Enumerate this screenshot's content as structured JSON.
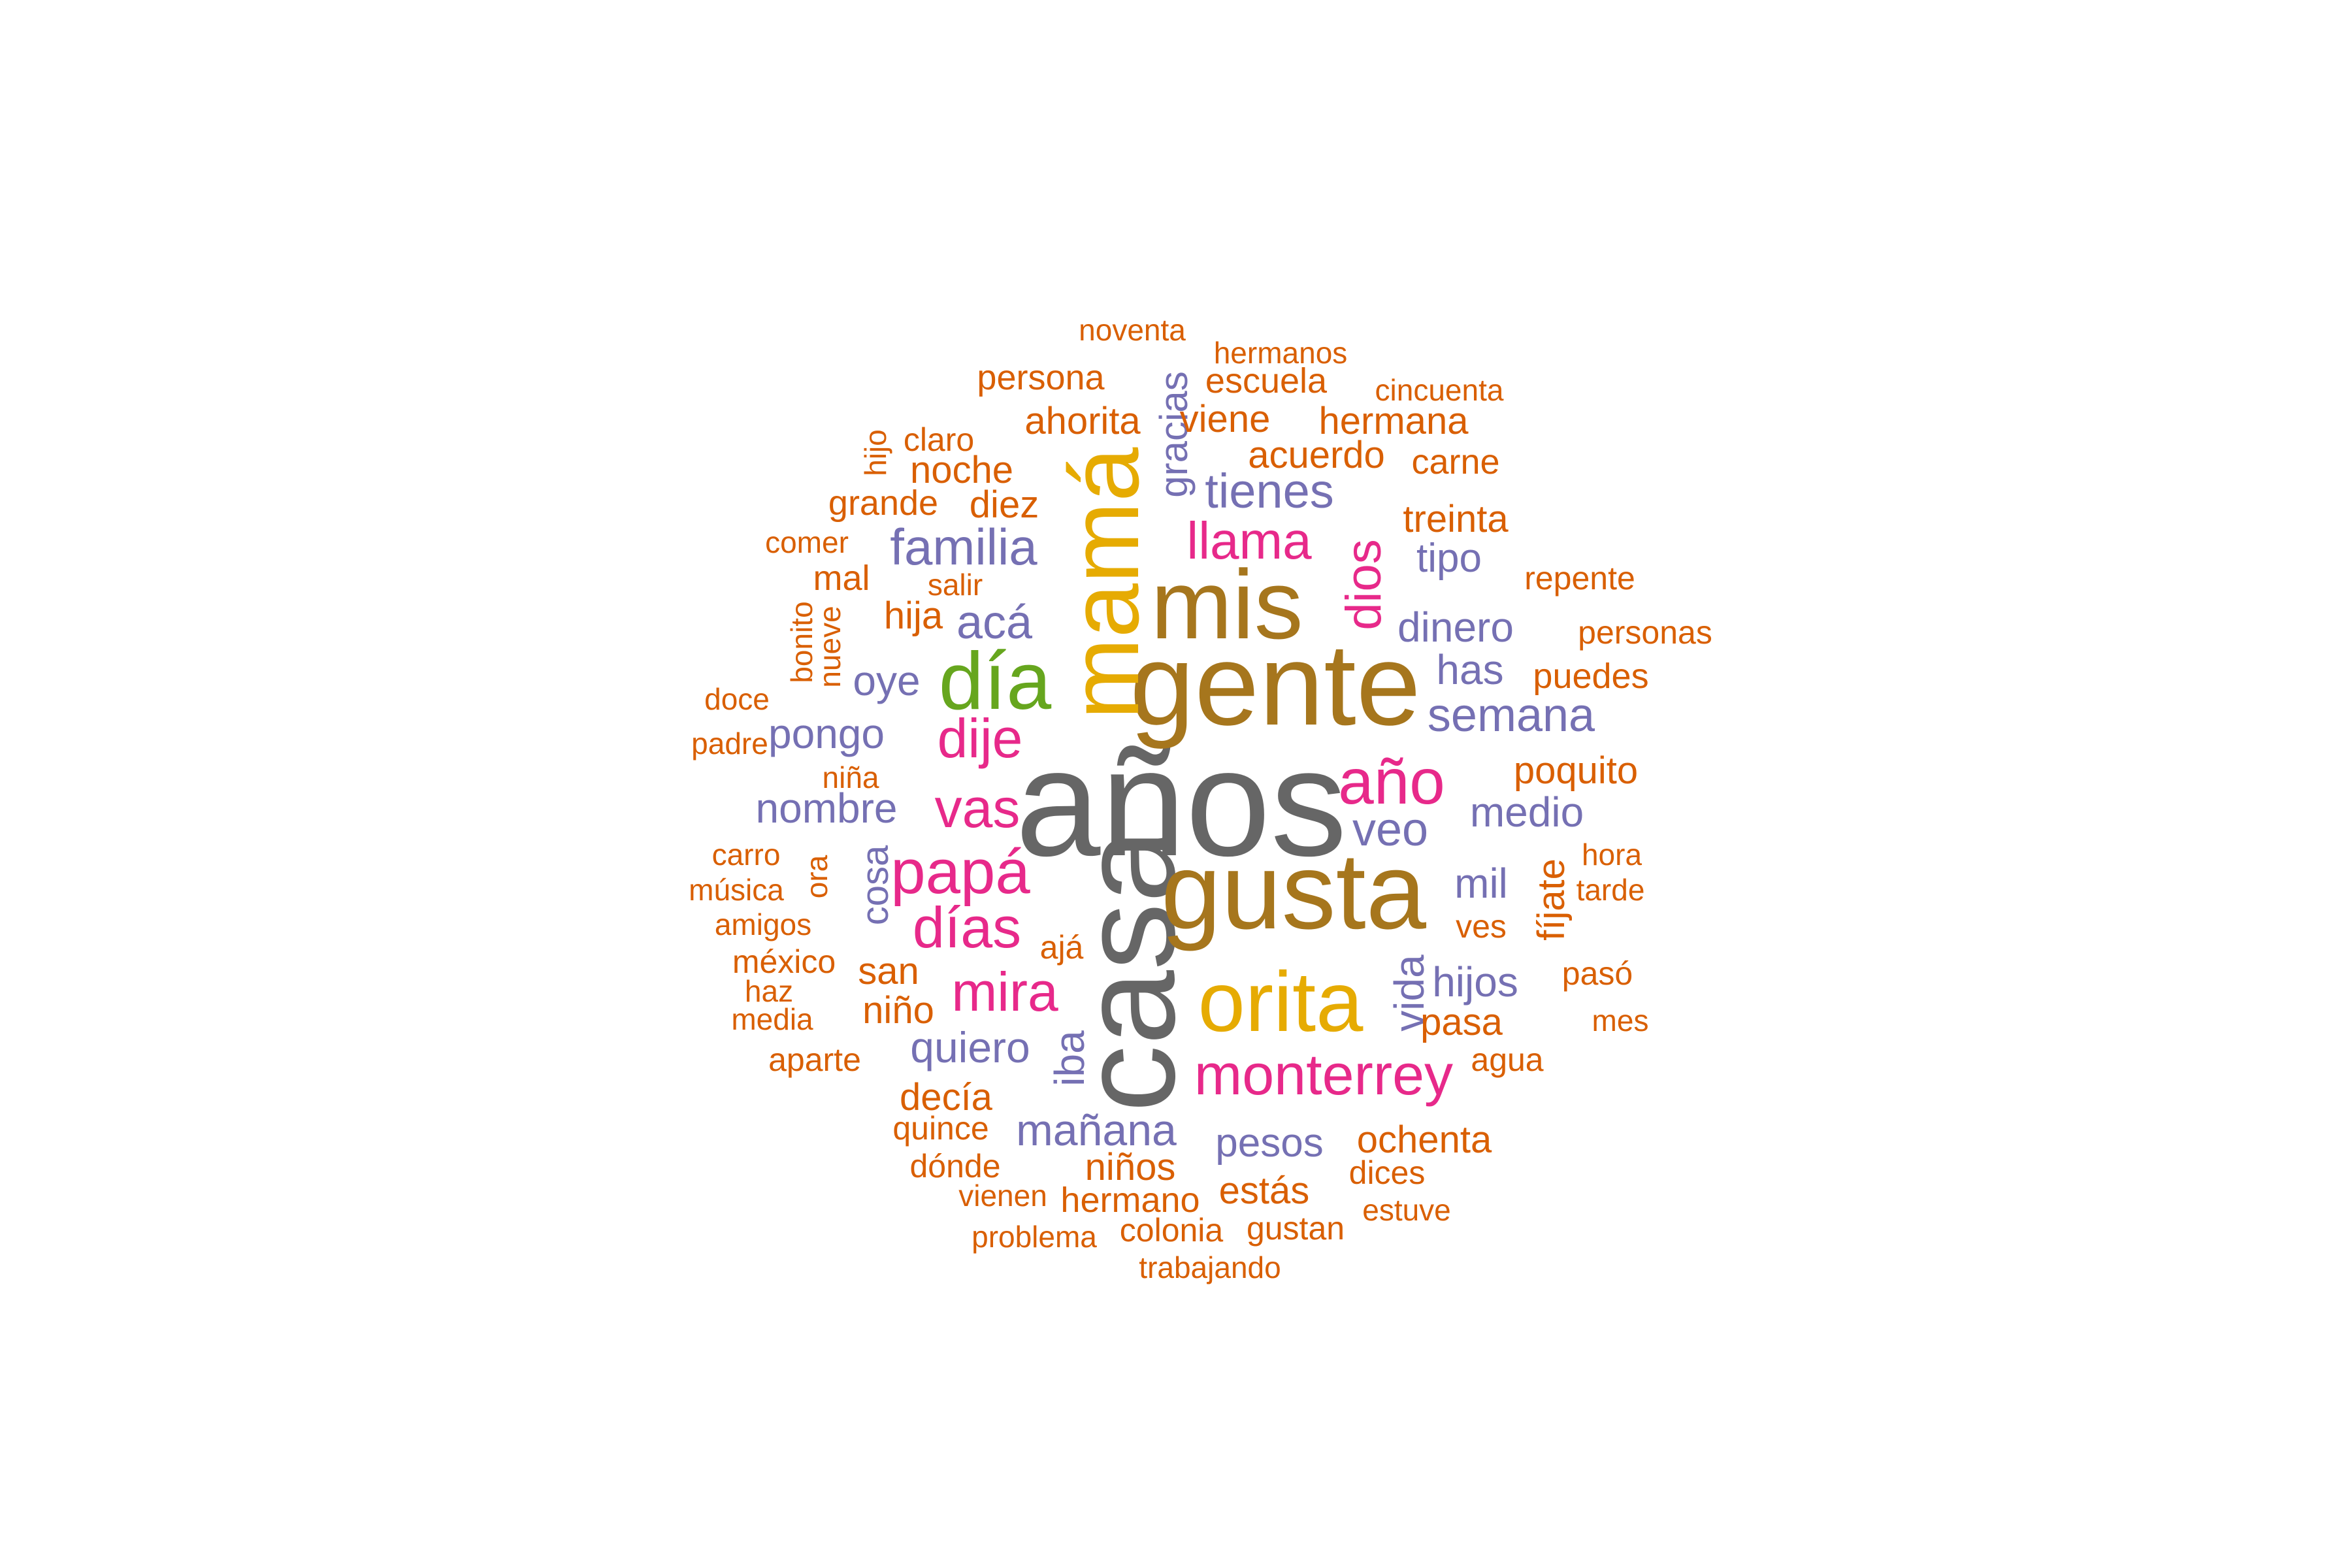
{
  "colors": {
    "gray": "#666666",
    "brown": "#a6761d",
    "gold": "#e6ab02",
    "green": "#66a61e",
    "magenta": "#e7298a",
    "purple": "#7570b3",
    "orange": "#d95f02"
  },
  "words": {
    "anos": "años",
    "casa": "casa",
    "gente": "gente",
    "mis": "mis",
    "gusta": "gusta",
    "mama": "mamá",
    "orita": "orita",
    "dia": "día",
    "papa": "papá",
    "dias": "días",
    "ano": "año",
    "monterrey": "monterrey",
    "mira": "mira",
    "vas": "vas",
    "dije": "dije",
    "llama": "llama",
    "dios": "dios",
    "familia": "familia",
    "tienes": "tienes",
    "semana": "semana",
    "aca": "acá",
    "veo": "veo",
    "manana": "mañana",
    "quiero": "quiero",
    "nombre": "nombre",
    "pongo": "pongo",
    "dinero": "dinero",
    "hijos": "hijos",
    "medio": "medio",
    "mil": "mil",
    "has": "has",
    "oye": "oye",
    "pesos": "pesos",
    "tipo": "tipo",
    "vida": "vida",
    "iba": "iba",
    "cosa": "cosa",
    "gracias": "gracias",
    "noventa": "noventa",
    "hermanos": "hermanos",
    "persona": "persona",
    "escuela": "escuela",
    "cincuenta": "cincuenta",
    "ahorita": "ahorita",
    "viene": "viene",
    "hermana": "hermana",
    "hijo": "hijo",
    "claro": "claro",
    "acuerdo": "acuerdo",
    "carne": "carne",
    "noche": "noche",
    "grande": "grande",
    "diez": "diez",
    "treinta": "treinta",
    "comer": "comer",
    "mal": "mal",
    "salir": "salir",
    "repente": "repente",
    "bonito": "bonito",
    "nueve": "nueve",
    "hija": "hija",
    "personas": "personas",
    "doce": "doce",
    "puedes": "puedes",
    "padre": "padre",
    "nina": "niña",
    "poquito": "poquito",
    "carro": "carro",
    "ora": "ora",
    "hora": "hora",
    "musica": "música",
    "tarde": "tarde",
    "fijate": "fíjate",
    "amigos": "amigos",
    "ves": "ves",
    "mexico": "méxico",
    "aja": "ajá",
    "san": "san",
    "paso": "pasó",
    "haz": "haz",
    "nino": "niño",
    "mes": "mes",
    "media": "media",
    "pasa": "pasa",
    "aparte": "aparte",
    "agua": "agua",
    "decia": "decía",
    "quince": "quince",
    "ochenta": "ochenta",
    "donde": "dónde",
    "ninos": "niños",
    "dices": "dices",
    "vienen": "vienen",
    "estas": "estás",
    "hermano": "hermano",
    "estuve": "estuve",
    "problema": "problema",
    "colonia": "colonia",
    "gustan": "gustan",
    "trabajando": "trabajando"
  }
}
